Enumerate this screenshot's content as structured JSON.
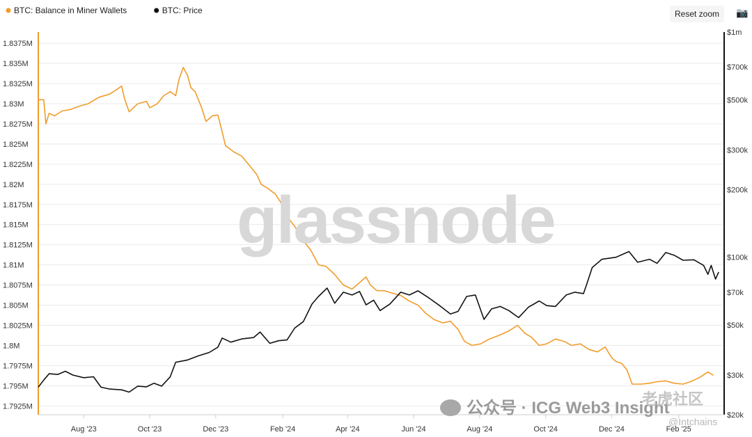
{
  "legend": [
    {
      "label": "BTC: Balance in Miner Wallets",
      "color": "#f09c2b"
    },
    {
      "label": "BTC: Price",
      "color": "#111111"
    }
  ],
  "toolbar": {
    "reset_zoom": "Reset zoom",
    "camera_icon": "camera-icon"
  },
  "watermark": "glassnode",
  "credit": {
    "text": "公众号 · ICG Web3 Insight"
  },
  "stamp": {
    "text": "老虎社区",
    "handle": "@Intchains"
  },
  "chart_data": {
    "type": "line",
    "x_ticks": [
      "Aug '23",
      "Oct '23",
      "Dec '23",
      "Feb '24",
      "Apr '24",
      "Jun '24",
      "Aug '24",
      "Oct '24",
      "Dec '24",
      "Feb '25"
    ],
    "x_tick_dates": [
      "2023-08-01",
      "2023-10-01",
      "2023-12-01",
      "2024-02-01",
      "2024-04-01",
      "2024-06-01",
      "2024-08-01",
      "2024-10-01",
      "2024-12-01",
      "2025-02-01"
    ],
    "x_range": [
      "2023-06-20",
      "2025-03-15"
    ],
    "y_left_ticks": [
      "1.8375M",
      "1.835M",
      "1.8325M",
      "1.83M",
      "1.8275M",
      "1.825M",
      "1.8225M",
      "1.82M",
      "1.8175M",
      "1.815M",
      "1.8125M",
      "1.81M",
      "1.8075M",
      "1.805M",
      "1.8025M",
      "1.8M",
      "1.7975M",
      "1.795M",
      "1.7925M"
    ],
    "y_left_range": [
      1.7914,
      1.8389
    ],
    "y_left_unit": "M",
    "y_right_ticks": [
      "$1m",
      "$700k",
      "$500k",
      "$300k",
      "$200k",
      "$100k",
      "$70k",
      "$50k",
      "$30k",
      "$20k"
    ],
    "y_right_tick_values": [
      1000000,
      700000,
      500000,
      300000,
      200000,
      100000,
      70000,
      50000,
      30000,
      20000
    ],
    "y_right_scale": "log",
    "y_right_range": [
      20000,
      1000000
    ],
    "grid": true,
    "legend_position": "top-left",
    "series": [
      {
        "name": "BTC: Balance in Miner Wallets",
        "axis": "left",
        "color": "#f09c2b",
        "points": [
          [
            "2023-06-20",
            1.8305
          ],
          [
            "2023-06-25",
            1.8305
          ],
          [
            "2023-06-27",
            1.8275
          ],
          [
            "2023-06-30",
            1.8288
          ],
          [
            "2023-07-05",
            1.8285
          ],
          [
            "2023-07-12",
            1.8291
          ],
          [
            "2023-07-20",
            1.8293
          ],
          [
            "2023-07-28",
            1.8297
          ],
          [
            "2023-08-05",
            1.83
          ],
          [
            "2023-08-15",
            1.8308
          ],
          [
            "2023-08-25",
            1.8312
          ],
          [
            "2023-09-01",
            1.8318
          ],
          [
            "2023-09-05",
            1.8322
          ],
          [
            "2023-09-08",
            1.8305
          ],
          [
            "2023-09-12",
            1.829
          ],
          [
            "2023-09-20",
            1.83
          ],
          [
            "2023-09-28",
            1.8303
          ],
          [
            "2023-10-01",
            1.8295
          ],
          [
            "2023-10-08",
            1.83
          ],
          [
            "2023-10-14",
            1.831
          ],
          [
            "2023-10-20",
            1.8315
          ],
          [
            "2023-10-25",
            1.831
          ],
          [
            "2023-10-28",
            1.833
          ],
          [
            "2023-11-01",
            1.8345
          ],
          [
            "2023-11-05",
            1.8335
          ],
          [
            "2023-11-08",
            1.832
          ],
          [
            "2023-11-12",
            1.8315
          ],
          [
            "2023-11-18",
            1.8295
          ],
          [
            "2023-11-22",
            1.8278
          ],
          [
            "2023-11-28",
            1.8285
          ],
          [
            "2023-12-03",
            1.8286
          ],
          [
            "2023-12-07",
            1.8265
          ],
          [
            "2023-12-10",
            1.8248
          ],
          [
            "2023-12-18",
            1.824
          ],
          [
            "2023-12-25",
            1.8235
          ],
          [
            "2024-01-02",
            1.8222
          ],
          [
            "2024-01-08",
            1.8212
          ],
          [
            "2024-01-12",
            1.82
          ],
          [
            "2024-01-18",
            1.8195
          ],
          [
            "2024-01-25",
            1.8188
          ],
          [
            "2024-01-30",
            1.8178
          ],
          [
            "2024-02-05",
            1.816
          ],
          [
            "2024-02-12",
            1.8148
          ],
          [
            "2024-02-20",
            1.813
          ],
          [
            "2024-02-27",
            1.8118
          ],
          [
            "2024-03-05",
            1.81
          ],
          [
            "2024-03-12",
            1.8098
          ],
          [
            "2024-03-20",
            1.8088
          ],
          [
            "2024-03-28",
            1.8075
          ],
          [
            "2024-04-05",
            1.807
          ],
          [
            "2024-04-12",
            1.8078
          ],
          [
            "2024-04-18",
            1.8085
          ],
          [
            "2024-04-22",
            1.8075
          ],
          [
            "2024-04-28",
            1.8068
          ],
          [
            "2024-05-05",
            1.8068
          ],
          [
            "2024-05-12",
            1.8065
          ],
          [
            "2024-05-20",
            1.8062
          ],
          [
            "2024-05-28",
            1.8055
          ],
          [
            "2024-06-05",
            1.805
          ],
          [
            "2024-06-12",
            1.804
          ],
          [
            "2024-06-20",
            1.8032
          ],
          [
            "2024-06-28",
            1.8028
          ],
          [
            "2024-07-05",
            1.803
          ],
          [
            "2024-07-12",
            1.802
          ],
          [
            "2024-07-18",
            1.8005
          ],
          [
            "2024-07-25",
            1.8
          ],
          [
            "2024-08-02",
            1.8002
          ],
          [
            "2024-08-10",
            1.8008
          ],
          [
            "2024-08-18",
            1.8012
          ],
          [
            "2024-08-28",
            1.8018
          ],
          [
            "2024-09-05",
            1.8025
          ],
          [
            "2024-09-12",
            1.8015
          ],
          [
            "2024-09-18",
            1.801
          ],
          [
            "2024-09-25",
            1.8
          ],
          [
            "2024-10-02",
            1.8002
          ],
          [
            "2024-10-10",
            1.8008
          ],
          [
            "2024-10-18",
            1.8005
          ],
          [
            "2024-10-25",
            1.8
          ],
          [
            "2024-11-02",
            1.8002
          ],
          [
            "2024-11-10",
            1.7995
          ],
          [
            "2024-11-18",
            1.7992
          ],
          [
            "2024-11-25",
            1.7998
          ],
          [
            "2024-12-01",
            1.7985
          ],
          [
            "2024-12-05",
            1.798
          ],
          [
            "2024-12-10",
            1.7978
          ],
          [
            "2024-12-15",
            1.797
          ],
          [
            "2024-12-20",
            1.7952
          ],
          [
            "2024-12-28",
            1.7952
          ],
          [
            "2025-01-05",
            1.7953
          ],
          [
            "2025-01-12",
            1.7955
          ],
          [
            "2025-01-20",
            1.7956
          ],
          [
            "2025-01-28",
            1.7953
          ],
          [
            "2025-02-05",
            1.7952
          ],
          [
            "2025-02-12",
            1.7955
          ],
          [
            "2025-02-20",
            1.796
          ],
          [
            "2025-02-28",
            1.7967
          ],
          [
            "2025-03-05",
            1.7963
          ]
        ]
      },
      {
        "name": "BTC: Price",
        "axis": "right",
        "color": "#111111",
        "points": [
          [
            "2023-06-20",
            26500
          ],
          [
            "2023-06-25",
            28500
          ],
          [
            "2023-06-30",
            30400
          ],
          [
            "2023-07-08",
            30200
          ],
          [
            "2023-07-15",
            31200
          ],
          [
            "2023-07-22",
            30000
          ],
          [
            "2023-08-01",
            29200
          ],
          [
            "2023-08-10",
            29500
          ],
          [
            "2023-08-17",
            26500
          ],
          [
            "2023-08-25",
            26000
          ],
          [
            "2023-09-05",
            25800
          ],
          [
            "2023-09-12",
            25200
          ],
          [
            "2023-09-20",
            26800
          ],
          [
            "2023-09-28",
            26600
          ],
          [
            "2023-10-05",
            27600
          ],
          [
            "2023-10-12",
            26800
          ],
          [
            "2023-10-20",
            29500
          ],
          [
            "2023-10-25",
            34200
          ],
          [
            "2023-11-05",
            35000
          ],
          [
            "2023-11-15",
            36500
          ],
          [
            "2023-11-25",
            37800
          ],
          [
            "2023-12-03",
            39900
          ],
          [
            "2023-12-07",
            43800
          ],
          [
            "2023-12-15",
            42000
          ],
          [
            "2023-12-25",
            43400
          ],
          [
            "2024-01-05",
            44000
          ],
          [
            "2024-01-11",
            46600
          ],
          [
            "2024-01-20",
            41500
          ],
          [
            "2024-01-28",
            42600
          ],
          [
            "2024-02-05",
            43000
          ],
          [
            "2024-02-12",
            48500
          ],
          [
            "2024-02-20",
            51800
          ],
          [
            "2024-02-28",
            62000
          ],
          [
            "2024-03-05",
            67000
          ],
          [
            "2024-03-13",
            73000
          ],
          [
            "2024-03-20",
            62500
          ],
          [
            "2024-03-28",
            70000
          ],
          [
            "2024-04-05",
            68000
          ],
          [
            "2024-04-12",
            70500
          ],
          [
            "2024-04-18",
            61500
          ],
          [
            "2024-04-25",
            64500
          ],
          [
            "2024-05-01",
            58000
          ],
          [
            "2024-05-10",
            62000
          ],
          [
            "2024-05-20",
            70000
          ],
          [
            "2024-05-28",
            68000
          ],
          [
            "2024-06-05",
            71000
          ],
          [
            "2024-06-15",
            66000
          ],
          [
            "2024-06-25",
            61000
          ],
          [
            "2024-07-05",
            56000
          ],
          [
            "2024-07-12",
            57500
          ],
          [
            "2024-07-20",
            67000
          ],
          [
            "2024-07-28",
            68000
          ],
          [
            "2024-08-05",
            53000
          ],
          [
            "2024-08-12",
            59000
          ],
          [
            "2024-08-20",
            60500
          ],
          [
            "2024-08-28",
            58000
          ],
          [
            "2024-09-06",
            54000
          ],
          [
            "2024-09-15",
            60000
          ],
          [
            "2024-09-25",
            64000
          ],
          [
            "2024-10-02",
            61000
          ],
          [
            "2024-10-10",
            60500
          ],
          [
            "2024-10-20",
            68000
          ],
          [
            "2024-10-28",
            70000
          ],
          [
            "2024-11-05",
            69000
          ],
          [
            "2024-11-08",
            76000
          ],
          [
            "2024-11-13",
            90000
          ],
          [
            "2024-11-22",
            98000
          ],
          [
            "2024-12-05",
            100000
          ],
          [
            "2024-12-17",
            106000
          ],
          [
            "2024-12-25",
            95000
          ],
          [
            "2025-01-05",
            98000
          ],
          [
            "2025-01-12",
            94000
          ],
          [
            "2025-01-20",
            105000
          ],
          [
            "2025-01-28",
            102000
          ],
          [
            "2025-02-05",
            97000
          ],
          [
            "2025-02-15",
            97500
          ],
          [
            "2025-02-24",
            92000
          ],
          [
            "2025-02-28",
            84000
          ],
          [
            "2025-03-03",
            92000
          ],
          [
            "2025-03-07",
            80000
          ],
          [
            "2025-03-10",
            86000
          ]
        ]
      }
    ]
  }
}
